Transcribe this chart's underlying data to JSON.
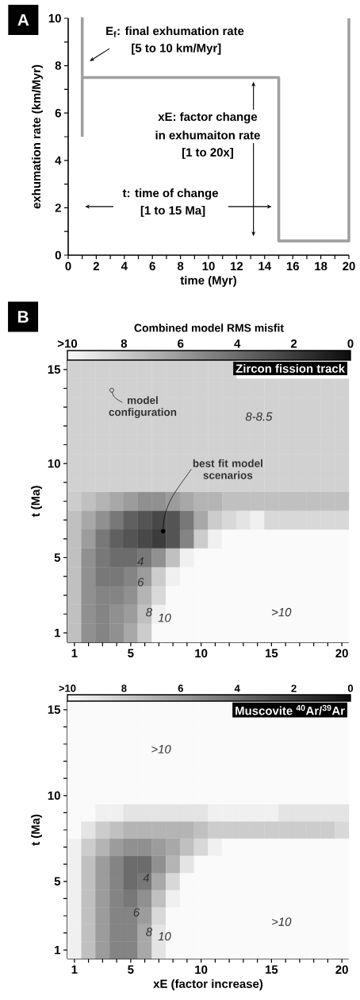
{
  "chart_data": [
    {
      "type": "line",
      "xlabel": "time (Myr)",
      "ylabel": "exhumation rate (km/Myr)",
      "x": [
        1,
        1,
        1,
        15,
        15,
        20,
        20
      ],
      "values": [
        5,
        10,
        7.5,
        7.5,
        0.6,
        0.6,
        10
      ],
      "color": "#a0a0a0",
      "xlim": [
        0,
        20
      ],
      "ylim": [
        0,
        10
      ],
      "xticks": [
        0,
        {
          "value": 1,
          "label": null
        },
        2,
        {
          "value": 3,
          "label": null
        },
        4,
        {
          "value": 5,
          "label": null
        },
        6,
        {
          "value": 7,
          "label": null
        },
        8,
        {
          "value": 9,
          "label": null
        },
        10,
        {
          "value": 11,
          "label": null
        },
        12,
        {
          "value": 13,
          "label": null
        },
        14,
        {
          "value": 15,
          "label": null
        },
        16,
        {
          "value": 17,
          "label": null
        },
        18,
        {
          "value": 19,
          "label": null
        },
        20
      ],
      "yticks": [
        0,
        {
          "value": 1,
          "label": null
        },
        2,
        {
          "value": 3,
          "label": null
        },
        4,
        {
          "value": 5,
          "label": null
        },
        6,
        {
          "value": 7,
          "label": null
        },
        8,
        {
          "value": 9,
          "label": null
        },
        10
      ],
      "annotations": [
        "A",
        "E$_{f}$: final exhumation rate",
        "[5 to 10 km/Myr]",
        "xE: factor change",
        "in exhumaiton rate",
        "[1 to 20x]",
        "t: time of change",
        "[1 to 15 Ma]"
      ]
    },
    {
      "type": "heatmap",
      "title": "Zircon fission track",
      "ylabel": "t (Ma)",
      "clabel": "Combined model RMS misfit",
      "categories": [
        "1",
        null,
        null,
        null,
        "5",
        null,
        null,
        null,
        null,
        "10",
        null,
        null,
        null,
        null,
        "15",
        null,
        null,
        null,
        null,
        "20"
      ],
      "y_categories": [
        "15",
        null,
        null,
        null,
        null,
        "10",
        null,
        null,
        null,
        null,
        "5",
        null,
        null,
        null,
        "1"
      ],
      "cells": [
        [
          8.2,
          8.2,
          8.2,
          8.2,
          8.2,
          8.2,
          8.2,
          8.2,
          8.2,
          8.2,
          8.2,
          8.2,
          null,
          null,
          null,
          null,
          null,
          null,
          null,
          null
        ],
        [
          8.2,
          8.2,
          8.2,
          8.2,
          8.2,
          8.2,
          8.2,
          8.2,
          8.2,
          8.2,
          8.2,
          8.2,
          8.2,
          8.2,
          8.2,
          8.2,
          8.2,
          8.2,
          8.2,
          8.2
        ],
        [
          8.2,
          8.2,
          8.2,
          8.2,
          8.2,
          8.2,
          8.2,
          8.2,
          8.2,
          8.2,
          8.2,
          8.2,
          8.2,
          8.2,
          8.2,
          8.2,
          8.2,
          8.2,
          8.2,
          8.2
        ],
        [
          8.2,
          8.2,
          8.2,
          8.2,
          8.2,
          8.2,
          8.2,
          8.2,
          8.2,
          8.2,
          8.2,
          8.2,
          8.2,
          8.2,
          8.2,
          8.2,
          8.2,
          8.2,
          8.2,
          8.2
        ],
        [
          8.2,
          8.2,
          8.2,
          8.2,
          8.2,
          8.2,
          8.2,
          8.2,
          8.2,
          8.2,
          8.2,
          8.2,
          8.2,
          8.2,
          8.2,
          8.2,
          8.2,
          8.2,
          8.2,
          8.2
        ],
        [
          8.2,
          8.2,
          8.2,
          8.2,
          8.2,
          8.2,
          8.2,
          8.2,
          8.2,
          8.2,
          8.2,
          8.2,
          8.2,
          8.2,
          8.2,
          8.2,
          8.2,
          8.2,
          8.2,
          8.2
        ],
        [
          8.2,
          8.2,
          8.2,
          8.2,
          8.2,
          8.2,
          8.2,
          8.2,
          8.2,
          8.2,
          8.2,
          8.2,
          8.2,
          8.2,
          8.2,
          8.2,
          8.2,
          8.2,
          8.2,
          8.2
        ],
        [
          8,
          7.5,
          7,
          6.5,
          6,
          5.5,
          5.5,
          6,
          6.5,
          7,
          7,
          7.5,
          7.5,
          7.5,
          7.5,
          7.5,
          7.5,
          7.5,
          7.5,
          7.5
        ],
        [
          7.5,
          6.5,
          5.5,
          4.5,
          3.5,
          3,
          2.5,
          3,
          4.5,
          6.5,
          8,
          8.5,
          9,
          9.5,
          8.5,
          8.5,
          8.5,
          8.5,
          8.5,
          8.5
        ],
        [
          7.5,
          6,
          4.5,
          3.5,
          3,
          2.5,
          2,
          3,
          5,
          8,
          9.5,
          10,
          10,
          10,
          10,
          10,
          10,
          10,
          10,
          10
        ],
        [
          7.5,
          5.5,
          4.5,
          4,
          4,
          4.5,
          5.5,
          7.5,
          9.5,
          10,
          10,
          10,
          10,
          10,
          10,
          10,
          10,
          10,
          10,
          10
        ],
        [
          7.5,
          5.5,
          4.5,
          4.5,
          5,
          6,
          8,
          9.5,
          10,
          10,
          10,
          10,
          10,
          10,
          10,
          10,
          10,
          10,
          10,
          10
        ],
        [
          7.5,
          5.5,
          5,
          5,
          5.5,
          7,
          8.5,
          10,
          10,
          10,
          10,
          10,
          10,
          10,
          10,
          10,
          10,
          10,
          10,
          10
        ],
        [
          7.5,
          5.5,
          5,
          5.5,
          6,
          7.5,
          9.5,
          10,
          10,
          10,
          10,
          10,
          10,
          10,
          10,
          10,
          10,
          10,
          10,
          10
        ],
        [
          7.5,
          5.5,
          5,
          5.5,
          6.5,
          8,
          10,
          10,
          10,
          10,
          10,
          10,
          10,
          10,
          10,
          10,
          10,
          10,
          10,
          10
        ]
      ],
      "clim": [
        10,
        0
      ],
      "cticks": [
        {
          "value": 10,
          "label": ">10"
        },
        8,
        6,
        4,
        2,
        0
      ],
      "annotations": [
        "B",
        "model configuration",
        "8-8.5",
        "best fit model scenarios",
        "4",
        "6",
        "8",
        "10",
        ">10"
      ]
    },
    {
      "type": "heatmap",
      "title": "Muscovite $^{40}$Ar/$^{39}$Ar",
      "xlabel": "xE (factor increase)",
      "ylabel": "t (Ma)",
      "categories": [
        "1",
        null,
        null,
        null,
        "5",
        null,
        null,
        null,
        null,
        "10",
        null,
        null,
        null,
        null,
        "15",
        null,
        null,
        null,
        null,
        "20"
      ],
      "y_categories": [
        "15",
        null,
        null,
        null,
        null,
        "10",
        null,
        null,
        null,
        null,
        "5",
        null,
        null,
        null,
        "1"
      ],
      "cells": [
        [
          10,
          10,
          10,
          10,
          10,
          10,
          10,
          10,
          10,
          10,
          10,
          10,
          null,
          null,
          null,
          null,
          null,
          null,
          null,
          null
        ],
        [
          10,
          10,
          10,
          10,
          10,
          10,
          10,
          10,
          10,
          10,
          10,
          10,
          10,
          10,
          10,
          10,
          10,
          10,
          10,
          10
        ],
        [
          10,
          10,
          10,
          10,
          10,
          10,
          10,
          10,
          10,
          10,
          10,
          10,
          10,
          10,
          10,
          10,
          10,
          10,
          10,
          10
        ],
        [
          10,
          10,
          10,
          10,
          10,
          10,
          10,
          10,
          10,
          10,
          10,
          10,
          10,
          10,
          10,
          10,
          10,
          10,
          10,
          10
        ],
        [
          10,
          10,
          10,
          10,
          10,
          10,
          10,
          10,
          10,
          10,
          10,
          10,
          10,
          10,
          10,
          10,
          10,
          10,
          10,
          10
        ],
        [
          10,
          10,
          10,
          10,
          10,
          10,
          10,
          10,
          10,
          10,
          10,
          10,
          10,
          10,
          10,
          10,
          10,
          10,
          10,
          10
        ],
        [
          10,
          10,
          9.5,
          9.5,
          9,
          9,
          9,
          9,
          9,
          9,
          9.5,
          9.5,
          9.5,
          9.5,
          9.5,
          9,
          9,
          9,
          9,
          9
        ],
        [
          10,
          9,
          8,
          7.5,
          7,
          7,
          7,
          7,
          7,
          7.5,
          8,
          8,
          8,
          8,
          8,
          8,
          8,
          8,
          8,
          8.5
        ],
        [
          9.5,
          8,
          7,
          6,
          5.5,
          5.5,
          6,
          6.5,
          7.5,
          8.5,
          9.5,
          10,
          10,
          10,
          10,
          10,
          10,
          10,
          10,
          10
        ],
        [
          9.5,
          7.5,
          6,
          5,
          4,
          4,
          5.5,
          7,
          9,
          10,
          10,
          10,
          10,
          10,
          10,
          10,
          10,
          10,
          10,
          10
        ],
        [
          9.5,
          7.5,
          6,
          5,
          4,
          4.5,
          6.5,
          8.5,
          10,
          10,
          10,
          10,
          10,
          10,
          10,
          10,
          10,
          10,
          10,
          10
        ],
        [
          9.5,
          7.5,
          6,
          5,
          4.5,
          5.5,
          7.5,
          9.5,
          10,
          10,
          10,
          10,
          10,
          10,
          10,
          10,
          10,
          10,
          10,
          10
        ],
        [
          9.5,
          7.5,
          6,
          5,
          5,
          6,
          8.5,
          10,
          10,
          10,
          10,
          10,
          10,
          10,
          10,
          10,
          10,
          10,
          10,
          10
        ],
        [
          9.5,
          7.5,
          6,
          5,
          5,
          6.5,
          9,
          10,
          10,
          10,
          10,
          10,
          10,
          10,
          10,
          10,
          10,
          10,
          10,
          10
        ],
        [
          9.5,
          7.5,
          6,
          5,
          5,
          6.5,
          9,
          10,
          10,
          10,
          10,
          10,
          10,
          10,
          10,
          10,
          10,
          10,
          10,
          10
        ]
      ],
      "clim": [
        10,
        0
      ],
      "cticks": [
        {
          "value": 10,
          "label": ">10"
        },
        8,
        6,
        4,
        2,
        0
      ],
      "annotations": [
        ">10",
        "4",
        "6",
        "8",
        "10",
        ">10"
      ]
    }
  ]
}
